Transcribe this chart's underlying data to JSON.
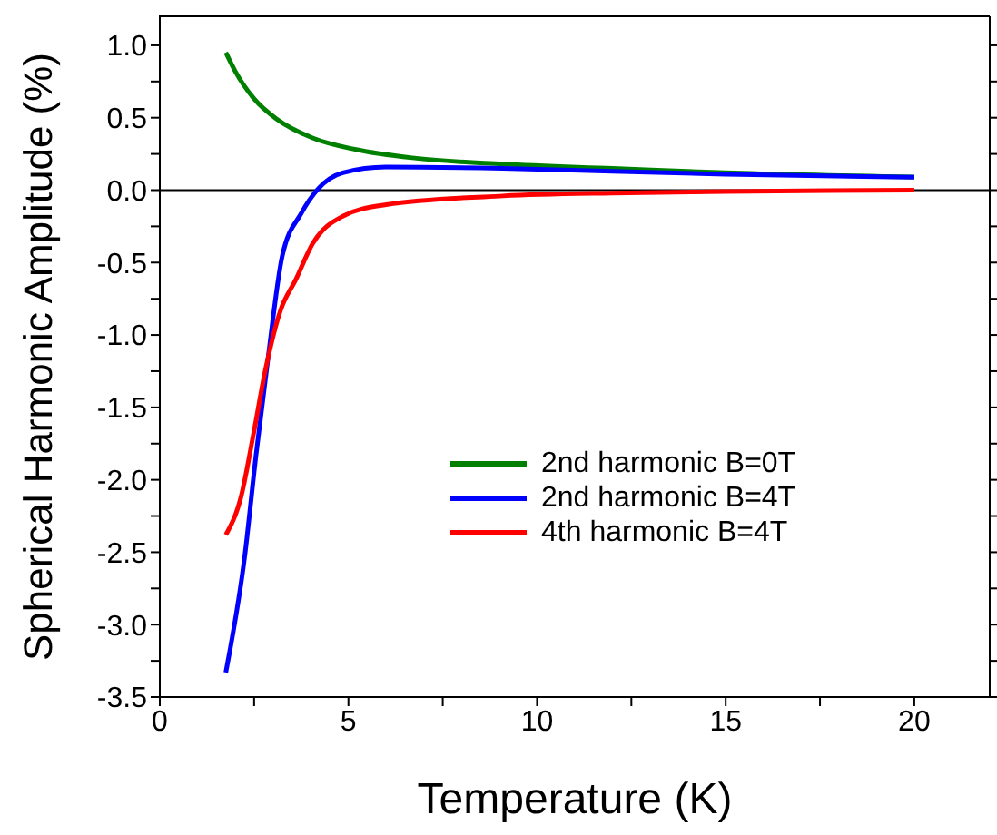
{
  "chart_data": {
    "type": "line",
    "xlabel": "Temperature (K)",
    "ylabel": "Spherical Harmonic Amplitude (%)",
    "xlim": [
      0,
      22
    ],
    "ylim": [
      -3.5,
      1.2
    ],
    "xticks": [
      0,
      {
        "value": 2.5,
        "label": null
      },
      5,
      {
        "value": 7.5,
        "label": null
      },
      10,
      {
        "value": 12.5,
        "label": null
      },
      15,
      {
        "value": 17.5,
        "label": null
      },
      20
    ],
    "yticks": [
      {
        "value": -3.5,
        "label": "-3.5"
      },
      {
        "value": -3.25,
        "label": null
      },
      {
        "value": -3,
        "label": "-3.0"
      },
      {
        "value": -2.75,
        "label": null
      },
      {
        "value": -2.5,
        "label": "-2.5"
      },
      {
        "value": -2.25,
        "label": null
      },
      {
        "value": -2,
        "label": "-2.0"
      },
      {
        "value": -1.75,
        "label": null
      },
      {
        "value": -1.5,
        "label": "-1.5"
      },
      {
        "value": -1.25,
        "label": null
      },
      {
        "value": -1,
        "label": "-1.0"
      },
      {
        "value": -0.75,
        "label": null
      },
      {
        "value": -0.5,
        "label": "-0.5"
      },
      {
        "value": -0.25,
        "label": null
      },
      {
        "value": 0,
        "label": "0.0"
      },
      {
        "value": 0.25,
        "label": null
      },
      {
        "value": 0.5,
        "label": "0.5"
      },
      {
        "value": 0.75,
        "label": null
      },
      {
        "value": 1,
        "label": "1.0"
      }
    ],
    "series": [
      {
        "name": "2nd harmonic B=0T",
        "color": "#008000",
        "x": [
          1.75,
          2.0,
          2.5,
          3.1,
          4.05,
          5.2,
          6.8,
          9.1,
          12,
          15,
          20
        ],
        "values": [
          0.95,
          0.82,
          0.63,
          0.49,
          0.36,
          0.28,
          0.22,
          0.18,
          0.15,
          0.12,
          0.09
        ]
      },
      {
        "name": "2nd harmonic B=4T",
        "color": "#0000ff",
        "x": [
          1.75,
          2.25,
          2.55,
          2.85,
          3.25,
          3.75,
          4.2,
          4.85,
          6.0,
          9.1,
          12,
          15,
          20
        ],
        "values": [
          -3.33,
          -2.53,
          -1.83,
          -1.2,
          -0.45,
          -0.16,
          0.01,
          0.12,
          0.16,
          0.15,
          0.13,
          0.11,
          0.09
        ]
      },
      {
        "name": "4th harmonic B=4T",
        "color": "#ff0000",
        "x": [
          1.75,
          2.15,
          2.5,
          2.8,
          3.2,
          3.6,
          4.05,
          4.85,
          6.0,
          9.1,
          12,
          15,
          20
        ],
        "values": [
          -2.38,
          -2.12,
          -1.66,
          -1.24,
          -0.83,
          -0.62,
          -0.37,
          -0.18,
          -0.1,
          -0.04,
          -0.02,
          -0.01,
          0
        ]
      }
    ],
    "ref_lines": [
      {
        "axis": "y",
        "value": 0,
        "color": "#000000"
      }
    ],
    "legend": "right",
    "line_style": "solid"
  }
}
